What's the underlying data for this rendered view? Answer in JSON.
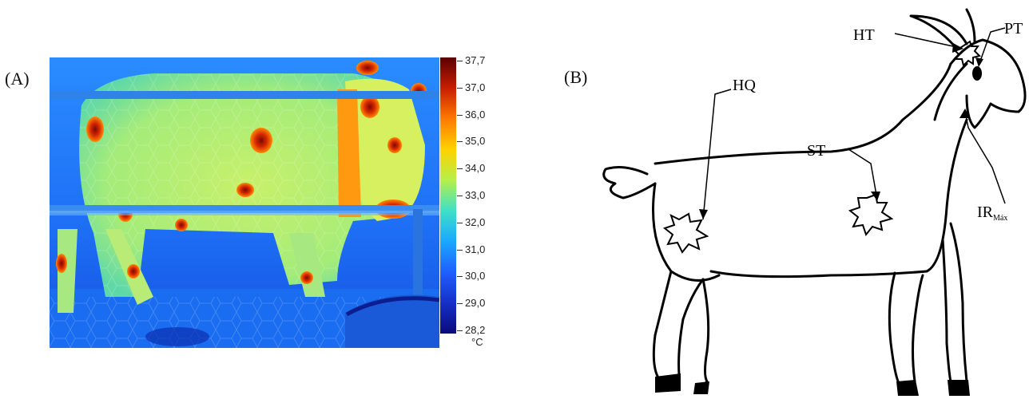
{
  "panels": {
    "a_label": "(A)",
    "b_label": "(B)"
  },
  "colorbar": {
    "ticks": [
      "37,7",
      "37,0",
      "36,0",
      "35,0",
      "34,0",
      "33,0",
      "32,0",
      "31,0",
      "30,0",
      "29,0",
      "28,2"
    ],
    "unit": "°C",
    "colors": [
      "#5a0000",
      "#c81e00",
      "#ff7a00",
      "#ffd200",
      "#b5f04a",
      "#3ee0c8",
      "#19a8ff",
      "#1f5fff",
      "#1530c8",
      "#0a0a7a"
    ]
  },
  "thermal": {
    "background": "#1e78ff",
    "body_color": "#8fe88a"
  },
  "diagram": {
    "labels": {
      "hq": "HQ",
      "st": "ST",
      "ht": "HT",
      "pt": "PT",
      "ir_main": "IR",
      "ir_sub": "Máx"
    }
  }
}
